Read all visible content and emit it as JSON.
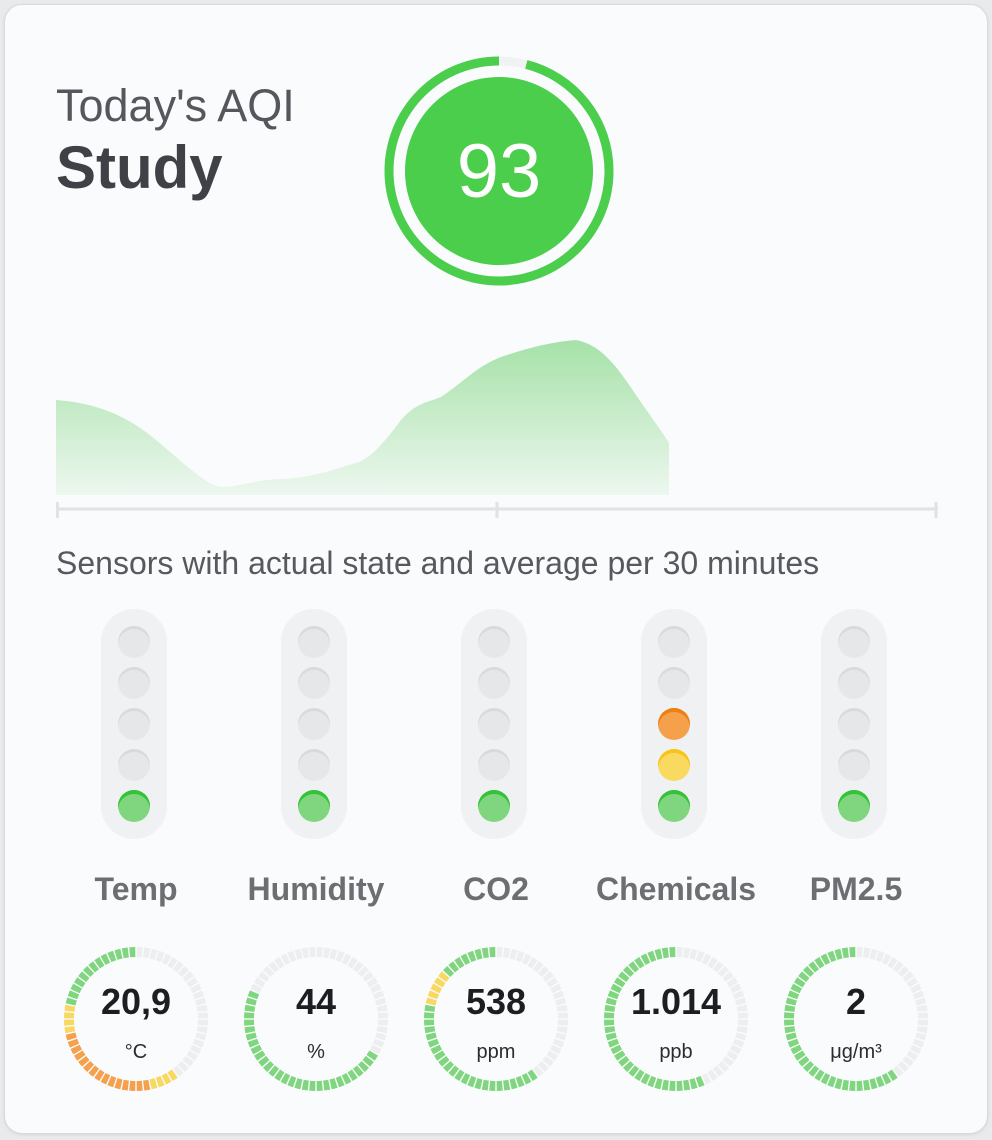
{
  "header": {
    "subtitle": "Today's AQI",
    "room": "Study",
    "aqi": "93",
    "aqi_level": 0.96,
    "aqi_color": "#4bce4b",
    "aqi_track_color": "#f1f2f4"
  },
  "history_color": "#8ad98b",
  "caption": "Sensors with actual state and average per 30 minutes",
  "colors": {
    "green": "#7fd67f",
    "yellow": "#f9d862",
    "orange": "#f4a04c",
    "empty": "#eceef0"
  },
  "sensors": [
    {
      "name": "Temp",
      "value": "20,9",
      "unit": "°C",
      "levels": [
        "green",
        "",
        "",
        "",
        ""
      ],
      "ring": {
        "empty": 24,
        "colors": [
          "yellow",
          "yellow",
          "yellow",
          "yellow",
          "orange",
          "orange",
          "orange",
          "orange",
          "orange",
          "orange",
          "orange",
          "orange",
          "orange",
          "orange",
          "orange",
          "orange",
          "orange",
          "orange",
          "orange",
          "yellow",
          "yellow",
          "yellow",
          "yellow",
          "green",
          "green",
          "green",
          "green",
          "green",
          "green",
          "green",
          "green",
          "green",
          "green",
          "green",
          "green",
          "green",
          "green",
          "green",
          "green",
          "green",
          "green",
          "green",
          "green",
          "green"
        ]
      }
    },
    {
      "name": "Humidity",
      "value": "44",
      "unit": "%",
      "levels": [
        "green",
        "",
        "",
        "",
        ""
      ],
      "ring": {
        "empty": 20,
        "colors": [
          "green",
          "green",
          "green",
          "green",
          "green",
          "green",
          "green",
          "green",
          "green",
          "green",
          "green",
          "green",
          "green",
          "green",
          "green",
          "green",
          "green",
          "green",
          "green",
          "green",
          "green",
          "green",
          "green",
          "green",
          "green",
          "green",
          "green",
          "green",
          "green"
        ]
      }
    },
    {
      "name": "CO2",
      "value": "538",
      "unit": "ppm",
      "levels": [
        "green",
        "",
        "",
        "",
        ""
      ],
      "ring": {
        "empty": 24,
        "colors": [
          "green",
          "green",
          "green",
          "green",
          "green",
          "green",
          "green",
          "green",
          "green",
          "green",
          "green",
          "green",
          "green",
          "green",
          "green",
          "green",
          "green",
          "green",
          "green",
          "green",
          "green",
          "green",
          "green",
          "yellow",
          "yellow",
          "yellow",
          "yellow",
          "yellow",
          "green",
          "green",
          "green",
          "green",
          "green",
          "green",
          "green",
          "green",
          "green",
          "green",
          "green",
          "green",
          "green",
          "green",
          "green",
          "green",
          "green"
        ]
      }
    },
    {
      "name": "Chemicals",
      "value": "1.014",
      "unit": "ppb",
      "levels": [
        "green",
        "yellow",
        "orange",
        "",
        ""
      ],
      "ring": {
        "empty": 26,
        "colors": [
          "green",
          "green",
          "green",
          "green",
          "green",
          "green",
          "green",
          "green",
          "green",
          "green",
          "green",
          "green",
          "green",
          "green",
          "green",
          "green",
          "green",
          "green",
          "green",
          "green",
          "green",
          "green",
          "green",
          "green",
          "green",
          "green",
          "green",
          "green",
          "green",
          "green",
          "green",
          "green",
          "green",
          "green",
          "green",
          "green",
          "green",
          "green",
          "green",
          "green",
          "orange",
          "yellow"
        ]
      }
    },
    {
      "name": "PM2.5",
      "value": "2",
      "unit": "μg/m³",
      "levels": [
        "green",
        "",
        "",
        "",
        ""
      ],
      "ring": {
        "empty": 24,
        "colors": [
          "green",
          "green",
          "green",
          "green",
          "green",
          "green",
          "green",
          "green",
          "green",
          "green",
          "green",
          "green",
          "green",
          "green",
          "green",
          "green",
          "green",
          "green",
          "green",
          "green",
          "green",
          "green",
          "green",
          "green",
          "green",
          "green",
          "green",
          "green",
          "green",
          "green",
          "green",
          "green",
          "green",
          "green",
          "green",
          "green",
          "green",
          "green",
          "green",
          "green",
          "green",
          "green",
          "green",
          "green",
          "green",
          "green"
        ]
      }
    }
  ]
}
